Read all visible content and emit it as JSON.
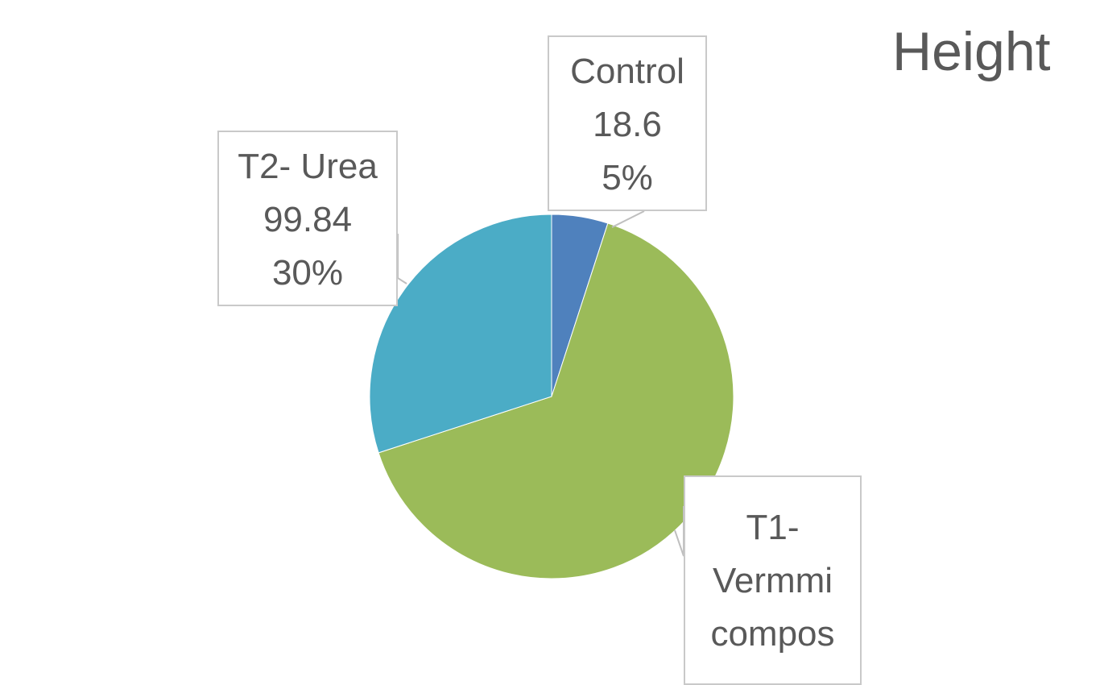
{
  "chart_data": {
    "type": "pie",
    "title": "Height",
    "slices": [
      {
        "label": "Control",
        "value": 18.6,
        "percent": "5%",
        "color": "#4f81bd"
      },
      {
        "label": "T1- Vermmi compos",
        "value": null,
        "percent": null,
        "color": "#9bbb59"
      },
      {
        "label": "T2- Urea",
        "value": 99.84,
        "percent": "30%",
        "color": "#4bacc6"
      }
    ],
    "share_fraction": [
      0.05,
      0.65,
      0.3
    ]
  },
  "labels": {
    "control": {
      "name": "Control",
      "value": "18.6",
      "percent": "5%"
    },
    "urea": {
      "name": "T2- Urea",
      "value": "99.84",
      "percent": "30%"
    },
    "t1": {
      "line1": "T1-",
      "line2": "Vermmi",
      "line3": "compos"
    }
  }
}
